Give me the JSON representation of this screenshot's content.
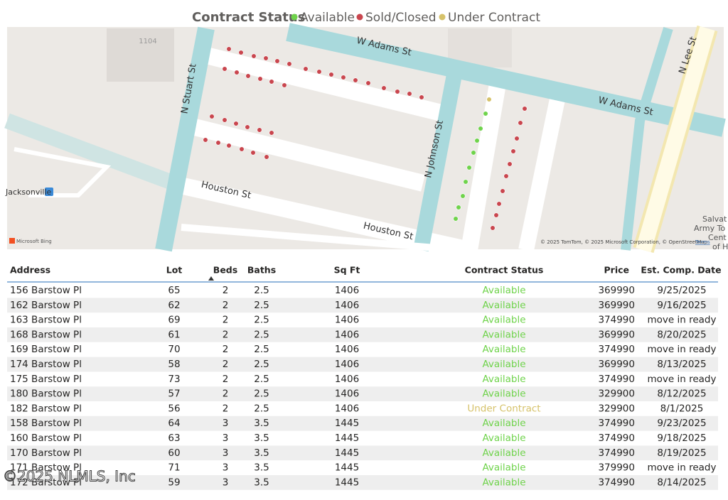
{
  "legend": {
    "title": "Contract Status",
    "items": [
      {
        "label": "Available",
        "color": "#6fd34b"
      },
      {
        "label": "Sold/Closed",
        "color": "#c9464e"
      },
      {
        "label": "Under Contract",
        "color": "#d6c26a"
      }
    ]
  },
  "map": {
    "building": "1104",
    "streets": [
      "W Adams St",
      "W Adams St",
      "N Stuart St",
      "N Johnson St",
      "N Lee St",
      "Houston St",
      "Houston St"
    ],
    "place": "Jacksonville",
    "landmark": [
      "Salvat",
      "Army To",
      "Cent",
      "of Ho"
    ],
    "provider": "Microsoft Bing",
    "attribution": "© 2025 TomTom, © 2025 Microsoft Corporation, © OpenStreetMap",
    "terms": "Terms"
  },
  "table": {
    "columns": [
      "Address",
      "Lot",
      "Beds",
      "Baths",
      "Sq Ft",
      "Contract Status",
      "Price",
      "Est. Comp. Date"
    ],
    "rows": [
      [
        "156 Barstow Pl",
        65,
        2,
        2.5,
        1406,
        "Available",
        369990,
        "9/25/2025"
      ],
      [
        "162 Barstow Pl",
        62,
        2,
        2.5,
        1406,
        "Available",
        369990,
        "9/16/2025"
      ],
      [
        "163 Barstow Pl",
        69,
        2,
        2.5,
        1406,
        "Available",
        374990,
        "move in ready"
      ],
      [
        "168 Barstow Pl",
        61,
        2,
        2.5,
        1406,
        "Available",
        369990,
        "8/20/2025"
      ],
      [
        "169 Barstow Pl",
        70,
        2,
        2.5,
        1406,
        "Available",
        374990,
        "move in ready"
      ],
      [
        "174 Barstow Pl",
        58,
        2,
        2.5,
        1406,
        "Available",
        369990,
        "8/13/2025"
      ],
      [
        "175 Barstow Pl",
        73,
        2,
        2.5,
        1406,
        "Available",
        374990,
        "move in ready"
      ],
      [
        "180 Barstow Pl",
        57,
        2,
        2.5,
        1406,
        "Available",
        329900,
        "8/12/2025"
      ],
      [
        "182 Barstow Pl",
        56,
        2,
        2.5,
        1406,
        "Under Contract",
        329900,
        "8/1/2025"
      ],
      [
        "158 Barstow Pl",
        64,
        3,
        3.5,
        1445,
        "Available",
        374990,
        "9/23/2025"
      ],
      [
        "160 Barstow Pl",
        63,
        3,
        3.5,
        1445,
        "Available",
        374990,
        "9/18/2025"
      ],
      [
        "170 Barstow Pl",
        60,
        3,
        3.5,
        1445,
        "Available",
        374990,
        "8/19/2025"
      ],
      [
        "171 Barstow Pl",
        71,
        3,
        3.5,
        1445,
        "Available",
        379990,
        "move in ready"
      ],
      [
        "172 Barstow Pl",
        59,
        3,
        3.5,
        1445,
        "Available",
        374990,
        "8/14/2025"
      ]
    ]
  },
  "watermark": "©2025 NLMLS, Inc"
}
